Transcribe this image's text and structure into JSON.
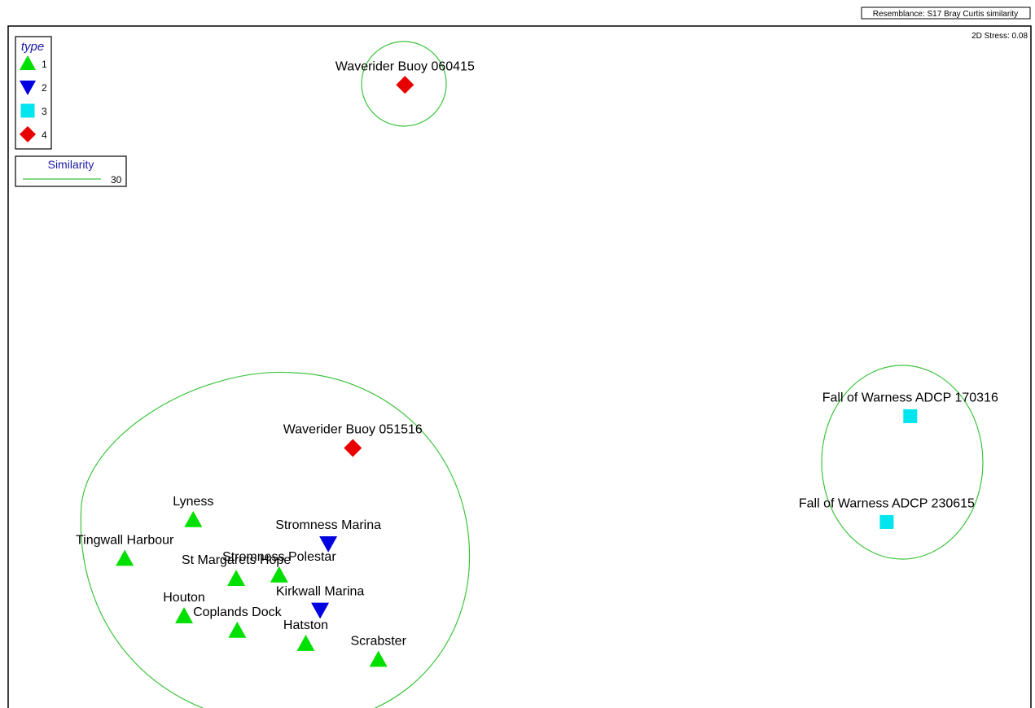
{
  "chart_data": {
    "type": "scatter",
    "resemblance": "Resemblance: S17 Bray Curtis similarity",
    "stress": "2D Stress: 0.08",
    "xlim": [
      0,
      100
    ],
    "ylim": [
      0,
      100
    ],
    "legend": {
      "title": "type",
      "placement": "top-left",
      "entries": [
        {
          "label": "1",
          "shape": "triangle-up",
          "color": "#00e000"
        },
        {
          "label": "2",
          "shape": "triangle-down",
          "color": "#0000e0"
        },
        {
          "label": "3",
          "shape": "square",
          "color": "#00e5ee"
        },
        {
          "label": "4",
          "shape": "diamond",
          "color": "#e80000"
        }
      ]
    },
    "similarity_legend": {
      "title": "Similarity",
      "level": "30",
      "color": "#3cc43c"
    },
    "points": [
      {
        "label": "Waverider Buoy 060415",
        "type": 4,
        "x": 38.8,
        "y": 91.5
      },
      {
        "label": "Waverider Buoy 051516",
        "type": 4,
        "x": 33.7,
        "y": 39.0
      },
      {
        "label": "Fall of Warness ADCP 170316",
        "type": 3,
        "x": 88.2,
        "y": 43.6
      },
      {
        "label": "Fall of Warness ADCP 230615",
        "type": 3,
        "x": 85.9,
        "y": 28.3
      },
      {
        "label": "Lyness",
        "type": 1,
        "x": 18.1,
        "y": 28.6
      },
      {
        "label": "Stromness Marina",
        "type": 2,
        "x": 31.3,
        "y": 25.2
      },
      {
        "label": "Tingwall Harbour",
        "type": 1,
        "x": 11.4,
        "y": 23.0
      },
      {
        "label": "Stromness Polestar",
        "type": 1,
        "x": 26.5,
        "y": 20.6
      },
      {
        "label": "St Margarets Hope",
        "type": 1,
        "x": 22.3,
        "y": 20.1
      },
      {
        "label": "Kirkwall Marina",
        "type": 2,
        "x": 30.5,
        "y": 15.6
      },
      {
        "label": "Houton",
        "type": 1,
        "x": 17.2,
        "y": 14.7
      },
      {
        "label": "Coplands Dock",
        "type": 1,
        "x": 22.4,
        "y": 12.6
      },
      {
        "label": "Hatston",
        "type": 1,
        "x": 29.1,
        "y": 10.7
      },
      {
        "label": "Scrabster",
        "type": 1,
        "x": 36.2,
        "y": 8.4
      }
    ]
  }
}
